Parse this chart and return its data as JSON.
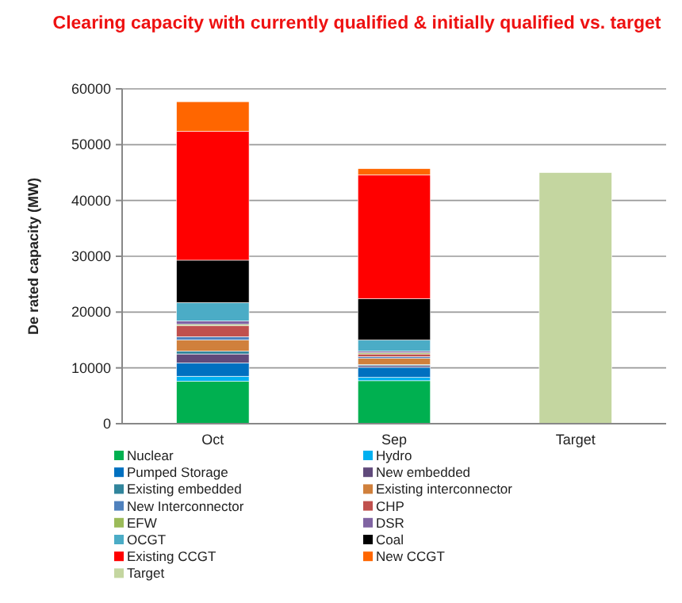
{
  "chart_data": {
    "type": "bar",
    "title": "Clearing capacity with currently qualified & initially qualified vs. target",
    "ylabel": "De rated capacity (MW)",
    "categories": [
      "Oct",
      "Sep",
      "Target"
    ],
    "stacked": true,
    "ylim": [
      0,
      60000
    ],
    "yticks": [
      0,
      10000,
      20000,
      30000,
      40000,
      50000,
      60000
    ],
    "grid": "y",
    "legend": "bottom",
    "series": [
      {
        "name": "Nuclear",
        "color": "#00b050",
        "values": [
          7600,
          7700,
          null
        ]
      },
      {
        "name": "Hydro",
        "color": "#00b0f0",
        "values": [
          900,
          600,
          null
        ]
      },
      {
        "name": "Pumped Storage",
        "color": "#0070c0",
        "values": [
          2400,
          1800,
          null
        ]
      },
      {
        "name": "New embedded",
        "color": "#604a7b",
        "values": [
          1600,
          300,
          null
        ]
      },
      {
        "name": "Existing embedded",
        "color": "#31859c",
        "values": [
          500,
          200,
          null
        ]
      },
      {
        "name": "Existing interconnector",
        "color": "#d0803c",
        "values": [
          2000,
          1100,
          null
        ]
      },
      {
        "name": "New Interconnector",
        "color": "#4f81bd",
        "values": [
          600,
          300,
          null
        ]
      },
      {
        "name": "CHP",
        "color": "#c0504d",
        "values": [
          2000,
          500,
          null
        ]
      },
      {
        "name": "EFW",
        "color": "#9bbb59",
        "values": [
          200,
          200,
          null
        ]
      },
      {
        "name": "DSR",
        "color": "#8064a2",
        "values": [
          600,
          300,
          null
        ]
      },
      {
        "name": "OCGT",
        "color": "#4bacc6",
        "values": [
          3300,
          2000,
          null
        ]
      },
      {
        "name": "Coal",
        "color": "#000000",
        "values": [
          7600,
          7400,
          null
        ]
      },
      {
        "name": "Existing CCGT",
        "color": "#ff0000",
        "values": [
          23100,
          22200,
          null
        ]
      },
      {
        "name": "New CCGT",
        "color": "#ff6600",
        "values": [
          5300,
          1100,
          null
        ]
      },
      {
        "name": "Target",
        "color": "#c4d6a0",
        "values": [
          null,
          null,
          45000
        ]
      }
    ]
  }
}
